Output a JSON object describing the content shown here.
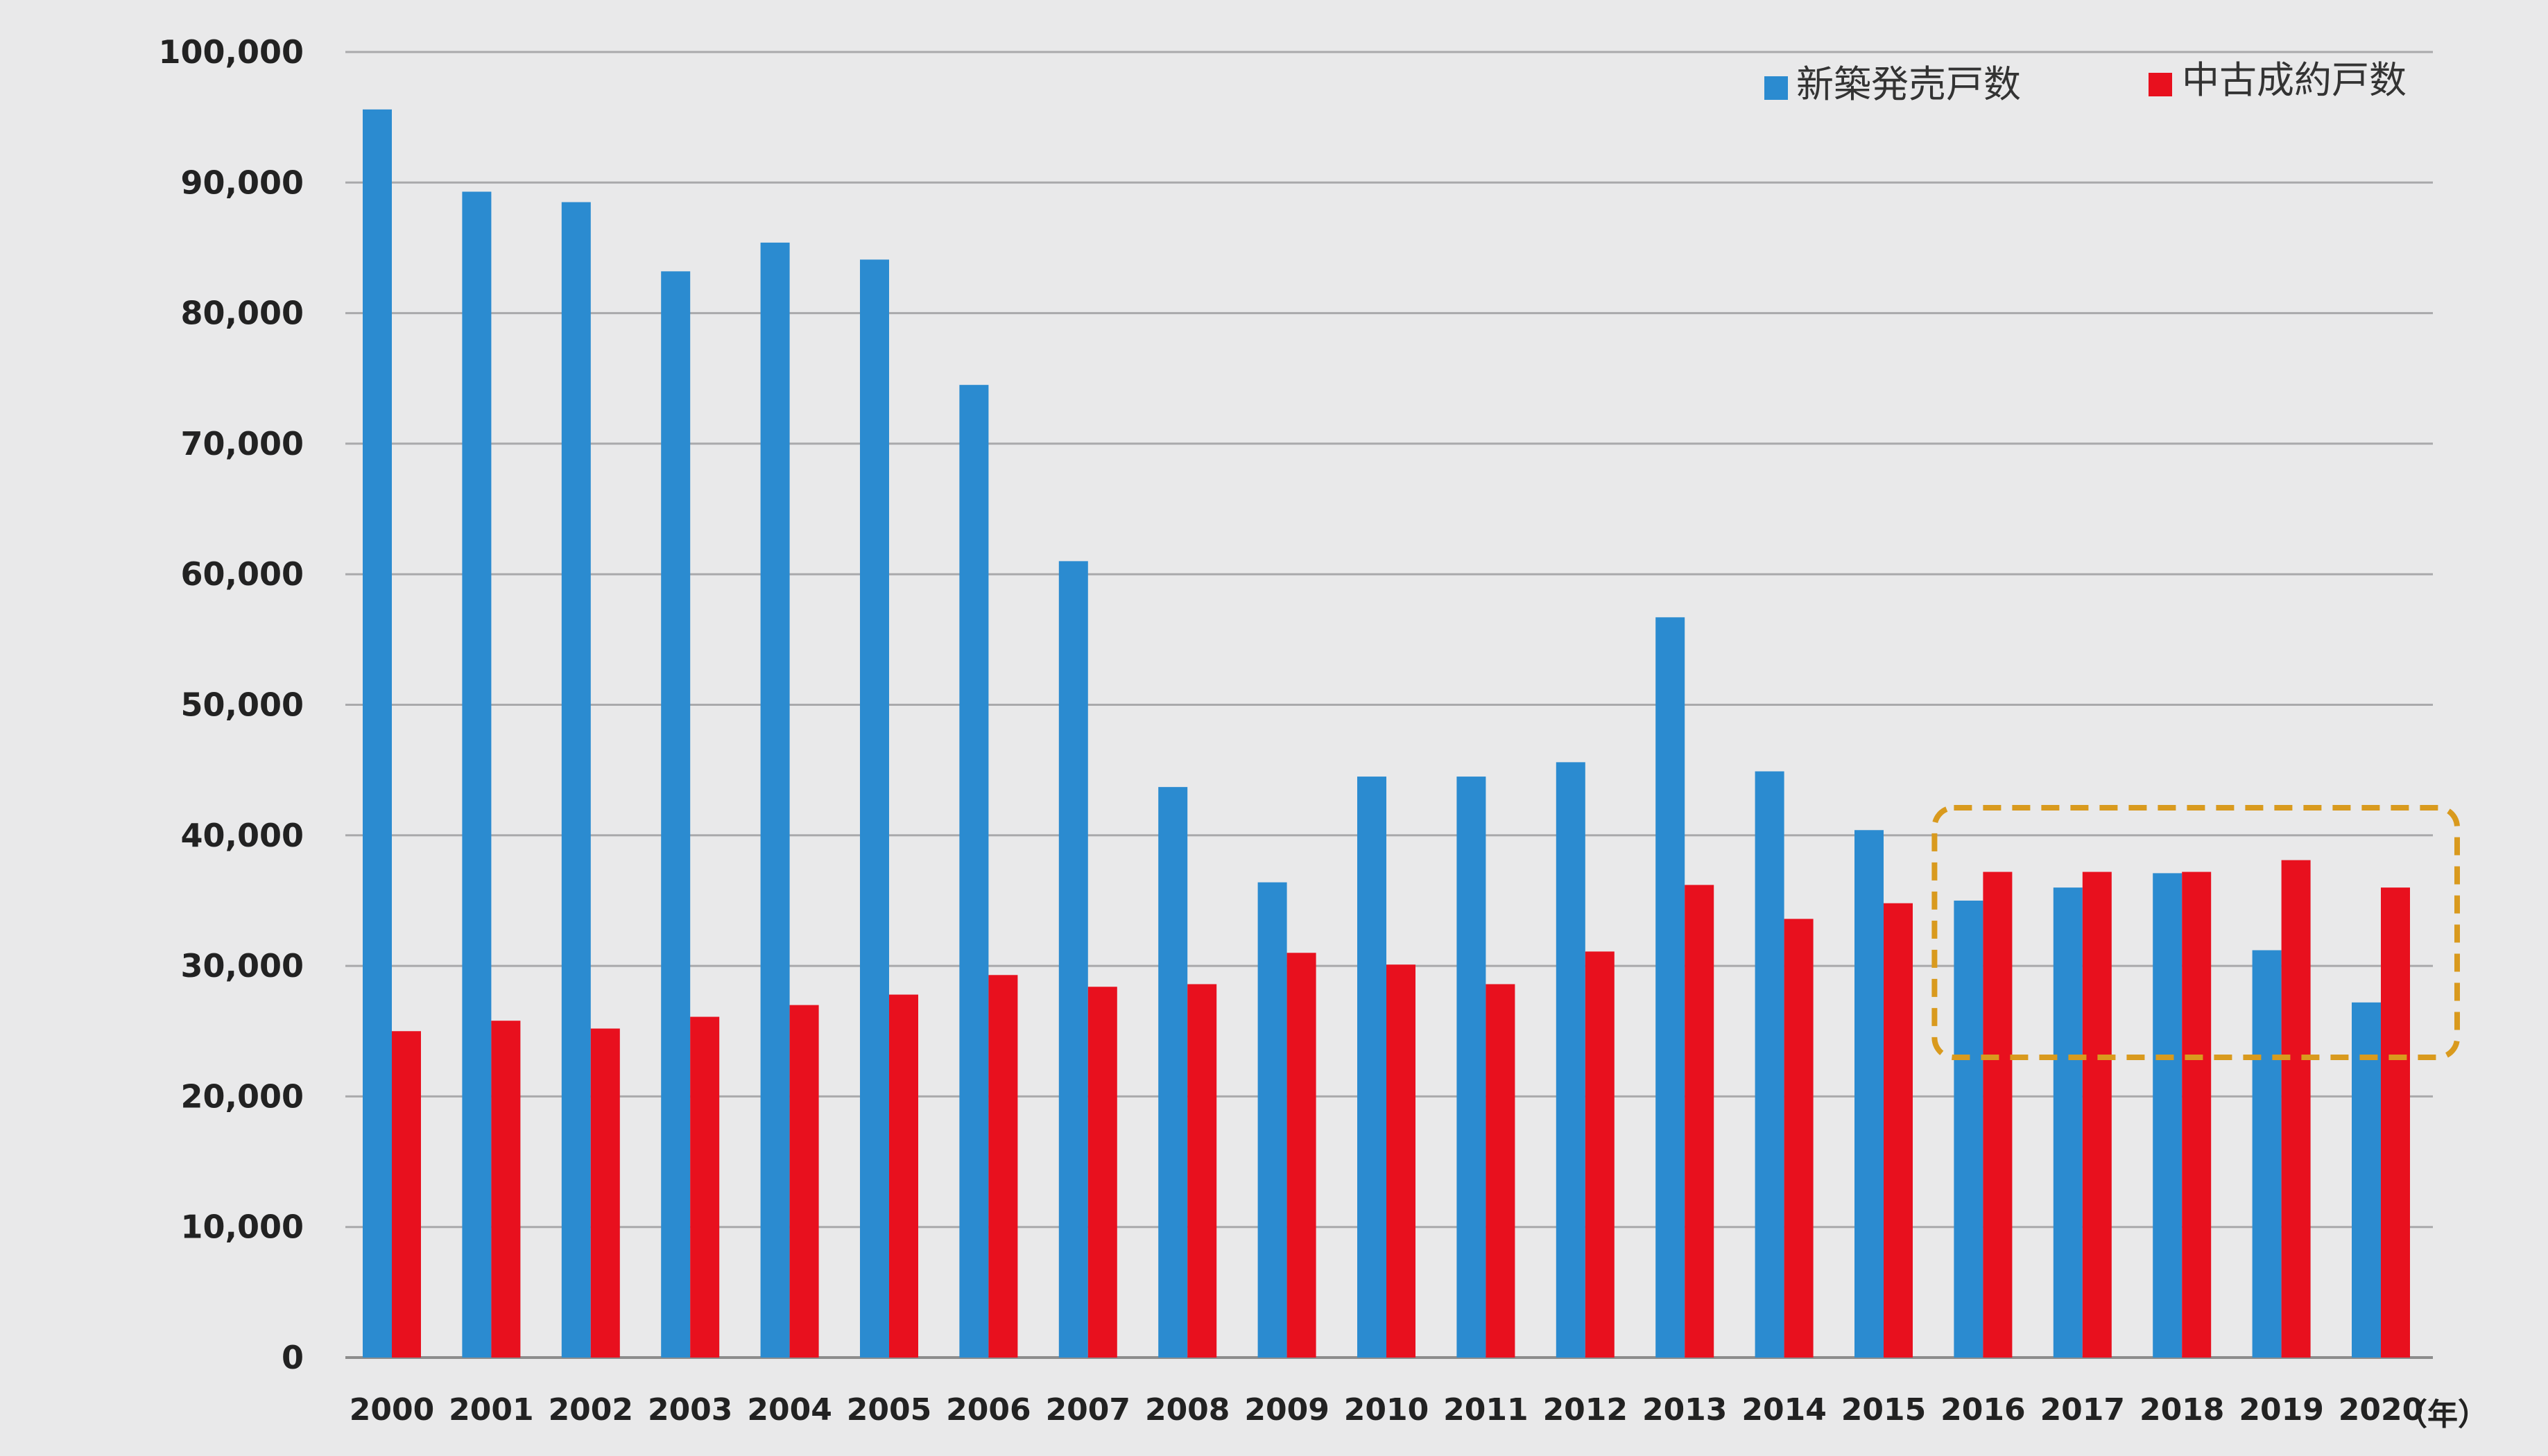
{
  "chart_data": {
    "type": "bar",
    "categories": [
      "2000",
      "2001",
      "2002",
      "2003",
      "2004",
      "2005",
      "2006",
      "2007",
      "2008",
      "2009",
      "2010",
      "2011",
      "2012",
      "2013",
      "2014",
      "2015",
      "2016",
      "2017",
      "2018",
      "2019",
      "2020"
    ],
    "x_unit": "（年）",
    "series": [
      {
        "name": "新築発売戸数",
        "color": "#2b8bd0",
        "values": [
          95600,
          89300,
          88500,
          83200,
          85400,
          84100,
          74500,
          61000,
          43700,
          36400,
          44500,
          44500,
          45600,
          56700,
          44900,
          40400,
          35000,
          36000,
          37100,
          31200,
          27200
        ]
      },
      {
        "name": "中古成約戸数",
        "color": "#e8101e",
        "values": [
          25000,
          25800,
          25200,
          26100,
          27000,
          27800,
          29300,
          28400,
          28600,
          31000,
          30100,
          28600,
          31100,
          36200,
          33600,
          34800,
          37200,
          37200,
          37200,
          38100,
          36000
        ]
      }
    ],
    "ylim": [
      0,
      100000
    ],
    "yticks": [
      0,
      10000,
      20000,
      30000,
      40000,
      50000,
      60000,
      70000,
      80000,
      90000,
      100000
    ],
    "ytick_labels": [
      "0",
      "10,000",
      "20,000",
      "30,000",
      "40,000",
      "50,000",
      "60,000",
      "70,000",
      "80,000",
      "90,000",
      "100,000"
    ],
    "grid": "horizontal",
    "legend_position": "top-right",
    "highlight": {
      "categories": [
        "2016",
        "2017",
        "2018",
        "2019",
        "2020"
      ],
      "color": "#d99a1e",
      "style": "dashed"
    }
  }
}
